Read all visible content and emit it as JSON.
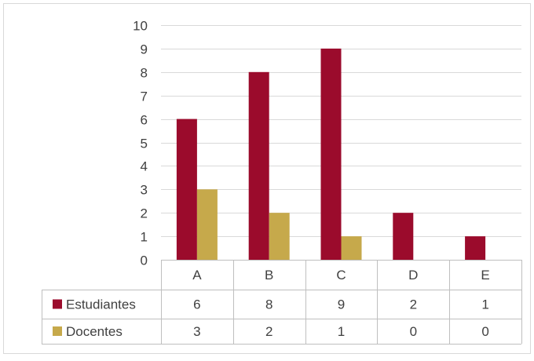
{
  "chart_data": {
    "type": "bar",
    "title": "",
    "xlabel": "",
    "ylabel": "",
    "categories": [
      "A",
      "B",
      "C",
      "D",
      "E"
    ],
    "series": [
      {
        "name": "Estudiantes",
        "values": [
          6,
          8,
          9,
          2,
          1
        ],
        "color": "#9b0b2c"
      },
      {
        "name": "Docentes",
        "values": [
          3,
          2,
          1,
          0,
          0
        ],
        "color": "#c6a94b"
      }
    ],
    "ylim": [
      0,
      10
    ],
    "yticks": [
      0,
      1,
      2,
      3,
      4,
      5,
      6,
      7,
      8,
      9,
      10
    ],
    "grid": true,
    "legend": "data-table",
    "data_table": true,
    "colors": {
      "gridline": "#d9d9d9",
      "border": "#bfbfbf",
      "text": "#404040"
    }
  }
}
